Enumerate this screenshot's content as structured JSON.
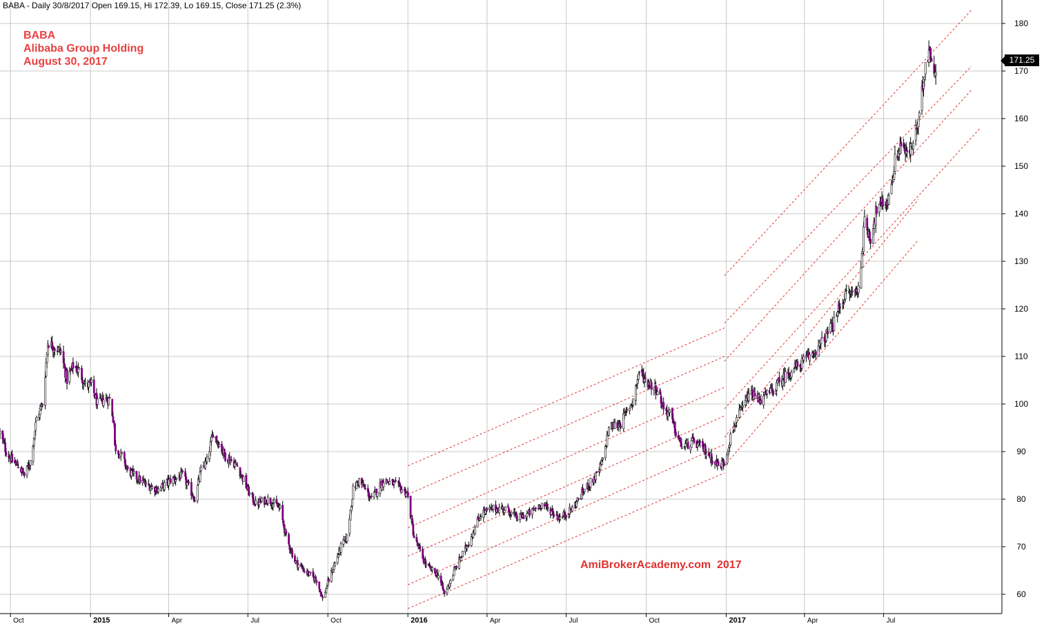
{
  "header": {
    "text": "BABA - Daily 30/8/2017 Open 169.15, Hi 172.39, Lo 169.15, Close 171.25 (2.3%)"
  },
  "caption": {
    "line1": "BABA",
    "line2": "Alibaba Group Holding",
    "line3": "August 30, 2017"
  },
  "watermark": "AmiBrokerAcademy.com  2017",
  "last_price_label": "171.25",
  "colors": {
    "bull_body": "#ffffff",
    "bear_body": "#800080",
    "candle_outline": "#000000",
    "channel": "#e0312f",
    "grid": "#c8c8c8",
    "caption": "#e8403f"
  },
  "chart_data": {
    "type": "candlestick",
    "ticker": "BABA",
    "ylim": [
      55,
      185
    ],
    "yticks": [
      60,
      70,
      80,
      90,
      100,
      110,
      120,
      130,
      140,
      150,
      160,
      170,
      180
    ],
    "xlim": [
      "2014-09-19",
      "2017-11-14"
    ],
    "grid": true,
    "xticks": [
      {
        "date": "2014-10-01",
        "label": "Oct"
      },
      {
        "date": "2015-01-01",
        "label": "2015"
      },
      {
        "date": "2015-04-01",
        "label": "Apr"
      },
      {
        "date": "2015-07-01",
        "label": "Jul"
      },
      {
        "date": "2015-10-01",
        "label": "Oct"
      },
      {
        "date": "2016-01-01",
        "label": "2016"
      },
      {
        "date": "2016-04-01",
        "label": "Apr"
      },
      {
        "date": "2016-07-01",
        "label": "Jul"
      },
      {
        "date": "2016-10-01",
        "label": "Oct"
      },
      {
        "date": "2017-01-01",
        "label": "2017"
      },
      {
        "date": "2017-04-01",
        "label": "Apr"
      },
      {
        "date": "2017-07-01",
        "label": "Jul"
      }
    ],
    "last_close": 171.25,
    "price_path": [
      [
        "2014-09-19",
        93.9
      ],
      [
        "2014-09-26",
        90
      ],
      [
        "2014-10-03",
        88
      ],
      [
        "2014-10-10",
        87
      ],
      [
        "2014-10-17",
        85
      ],
      [
        "2014-10-24",
        88
      ],
      [
        "2014-10-31",
        97
      ],
      [
        "2014-11-07",
        100
      ],
      [
        "2014-11-13",
        113
      ],
      [
        "2014-11-20",
        112
      ],
      [
        "2014-11-28",
        111
      ],
      [
        "2014-12-05",
        105
      ],
      [
        "2014-12-12",
        108
      ],
      [
        "2014-12-19",
        107
      ],
      [
        "2014-12-26",
        104
      ],
      [
        "2015-01-02",
        104
      ],
      [
        "2015-01-09",
        100
      ],
      [
        "2015-01-16",
        101
      ],
      [
        "2015-01-23",
        101
      ],
      [
        "2015-01-28",
        96
      ],
      [
        "2015-01-29",
        91
      ],
      [
        "2015-02-06",
        89
      ],
      [
        "2015-02-13",
        86
      ],
      [
        "2015-02-20",
        85
      ],
      [
        "2015-03-06",
        83
      ],
      [
        "2015-03-20",
        82
      ],
      [
        "2015-04-03",
        84
      ],
      [
        "2015-04-17",
        85
      ],
      [
        "2015-05-01",
        80
      ],
      [
        "2015-05-08",
        86
      ],
      [
        "2015-05-15",
        88
      ],
      [
        "2015-05-22",
        94
      ],
      [
        "2015-06-05",
        89
      ],
      [
        "2015-06-19",
        87
      ],
      [
        "2015-07-03",
        81
      ],
      [
        "2015-07-10",
        79
      ],
      [
        "2015-07-24",
        80
      ],
      [
        "2015-08-07",
        78
      ],
      [
        "2015-08-14",
        72
      ],
      [
        "2015-08-24",
        67
      ],
      [
        "2015-09-04",
        65
      ],
      [
        "2015-09-18",
        63
      ],
      [
        "2015-09-25",
        59
      ],
      [
        "2015-10-02",
        63
      ],
      [
        "2015-10-16",
        70
      ],
      [
        "2015-10-23",
        72
      ],
      [
        "2015-10-30",
        82
      ],
      [
        "2015-11-06",
        84
      ],
      [
        "2015-11-20",
        80
      ],
      [
        "2015-12-04",
        84
      ],
      [
        "2015-12-18",
        83
      ],
      [
        "2015-12-31",
        81.3
      ],
      [
        "2016-01-08",
        72
      ],
      [
        "2016-01-22",
        66
      ],
      [
        "2016-02-05",
        64
      ],
      [
        "2016-02-12",
        60
      ],
      [
        "2016-02-26",
        66
      ],
      [
        "2016-03-11",
        71
      ],
      [
        "2016-03-25",
        77
      ],
      [
        "2016-04-08",
        78
      ],
      [
        "2016-04-22",
        78
      ],
      [
        "2016-05-06",
        76
      ],
      [
        "2016-05-20",
        77
      ],
      [
        "2016-06-03",
        79
      ],
      [
        "2016-06-17",
        77
      ],
      [
        "2016-06-24",
        76
      ],
      [
        "2016-07-08",
        78
      ],
      [
        "2016-07-22",
        82
      ],
      [
        "2016-08-05",
        85
      ],
      [
        "2016-08-12",
        88
      ],
      [
        "2016-08-19",
        95
      ],
      [
        "2016-09-02",
        96
      ],
      [
        "2016-09-16",
        101
      ],
      [
        "2016-09-23",
        107
      ],
      [
        "2016-09-30",
        105
      ],
      [
        "2016-10-14",
        103
      ],
      [
        "2016-10-21",
        99
      ],
      [
        "2016-10-28",
        98
      ],
      [
        "2016-11-04",
        94
      ],
      [
        "2016-11-11",
        91
      ],
      [
        "2016-11-25",
        92
      ],
      [
        "2016-12-09",
        90
      ],
      [
        "2016-12-23",
        87
      ],
      [
        "2016-12-30",
        87.8
      ],
      [
        "2017-01-06",
        93
      ],
      [
        "2017-01-13",
        97
      ],
      [
        "2017-01-20",
        99
      ],
      [
        "2017-01-27",
        102
      ],
      [
        "2017-02-10",
        101
      ],
      [
        "2017-02-24",
        103
      ],
      [
        "2017-03-10",
        106
      ],
      [
        "2017-03-24",
        108
      ],
      [
        "2017-04-07",
        110
      ],
      [
        "2017-04-21",
        113
      ],
      [
        "2017-05-05",
        117
      ],
      [
        "2017-05-12",
        121
      ],
      [
        "2017-05-19",
        123
      ],
      [
        "2017-06-02",
        124
      ],
      [
        "2017-06-09",
        138
      ],
      [
        "2017-06-16",
        135
      ],
      [
        "2017-06-23",
        141
      ],
      [
        "2017-07-07",
        143
      ],
      [
        "2017-07-14",
        151
      ],
      [
        "2017-07-21",
        155
      ],
      [
        "2017-07-28",
        152
      ],
      [
        "2017-08-04",
        155
      ],
      [
        "2017-08-11",
        160
      ],
      [
        "2017-08-18",
        172
      ],
      [
        "2017-08-23",
        175
      ],
      [
        "2017-08-28",
        168
      ],
      [
        "2017-08-30",
        171.25
      ]
    ],
    "channels": [
      {
        "start": [
          "2016-01-01",
          87.0
        ],
        "end": [
          "2016-12-30",
          116.0
        ]
      },
      {
        "start": [
          "2016-01-01",
          81.0
        ],
        "end": [
          "2016-12-30",
          110.0
        ]
      },
      {
        "start": [
          "2016-01-01",
          74.0
        ],
        "end": [
          "2016-12-30",
          103.5
        ]
      },
      {
        "start": [
          "2016-01-01",
          68.0
        ],
        "end": [
          "2016-12-30",
          97.5
        ]
      },
      {
        "start": [
          "2016-01-01",
          62.0
        ],
        "end": [
          "2016-12-30",
          91.5
        ]
      },
      {
        "start": [
          "2016-01-01",
          57.0
        ],
        "end": [
          "2016-12-30",
          85.5
        ]
      },
      {
        "start": [
          "2016-12-30",
          127.0
        ],
        "end": [
          "2017-10-10",
          182.8
        ]
      },
      {
        "start": [
          "2016-12-30",
          117.0
        ],
        "end": [
          "2017-10-10",
          171.0
        ]
      },
      {
        "start": [
          "2016-12-30",
          109.0
        ],
        "end": [
          "2017-10-10",
          166.0
        ]
      },
      {
        "start": [
          "2016-12-30",
          99.0
        ],
        "end": [
          "2017-10-20",
          158.0
        ]
      },
      {
        "start": [
          "2016-12-30",
          93.0
        ],
        "end": [
          "2017-08-10",
          143.0
        ]
      },
      {
        "start": [
          "2016-12-30",
          87.0
        ],
        "end": [
          "2017-08-10",
          134.5
        ]
      }
    ]
  }
}
